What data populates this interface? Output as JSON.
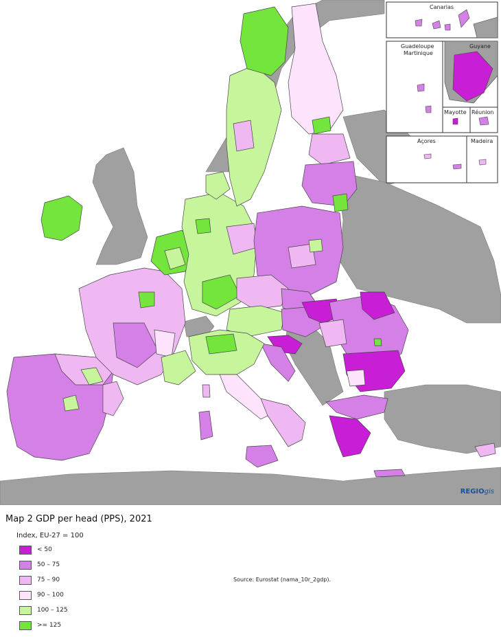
{
  "title": "Map 2 GDP per head (PPS), 2021",
  "legend": {
    "subtitle": "Index, EU-27 = 100",
    "classes": [
      {
        "label": "< 50",
        "color": "#c81fd6"
      },
      {
        "label": "50 – 75",
        "color": "#d580e6"
      },
      {
        "label": "75 – 90",
        "color": "#f0b8f3"
      },
      {
        "label": "90 – 100",
        "color": "#fde3fb"
      },
      {
        "label": "100 – 125",
        "color": "#c6f59c"
      },
      {
        "label": ">= 125",
        "color": "#74e53c"
      }
    ]
  },
  "source": "Source: Eurostat (nama_10r_2gdp).",
  "credit": {
    "brand": "REGIO",
    "suffix": "gis"
  },
  "insets": {
    "canarias": "Canarias",
    "guadeloupe": "Guadeloupe",
    "martinique": "Martinique",
    "guyane": "Guyane",
    "mayotte": "Mayotte",
    "reunion": "Réunion",
    "acores": "Açores",
    "madeira": "Madeira"
  },
  "colors": {
    "sea": "#ffffff",
    "non_eu_land": "#a0a0a0",
    "border": "#444444"
  }
}
